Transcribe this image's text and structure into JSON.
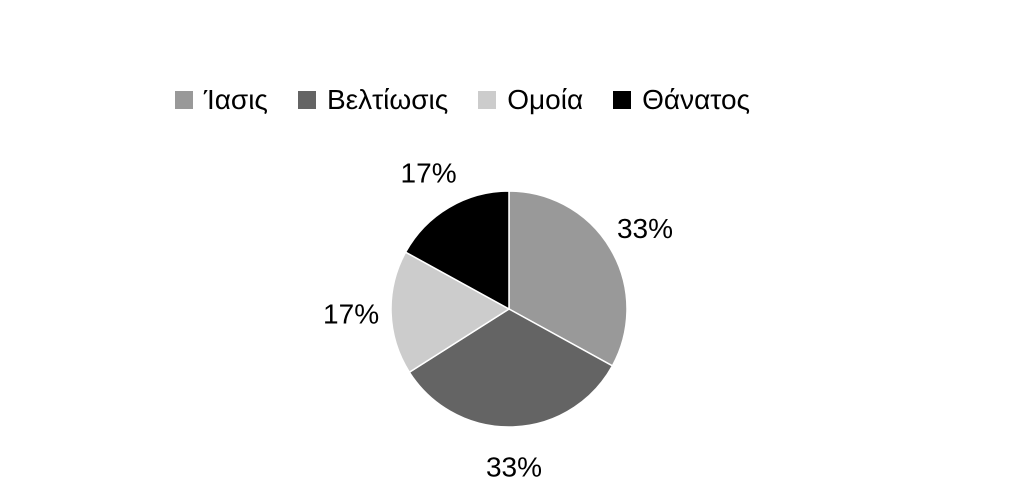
{
  "chart_data": {
    "type": "pie",
    "title": "",
    "legend_position": "top",
    "categories": [
      "Ίασις",
      "Βελτίωσις",
      "Ομοία",
      "Θάνατος"
    ],
    "values": [
      33,
      33,
      17,
      17
    ],
    "data_labels": [
      "33%",
      "33%",
      "17%",
      "17%"
    ],
    "colors": [
      "#999999",
      "#646464",
      "#cccccc",
      "#000000"
    ]
  }
}
